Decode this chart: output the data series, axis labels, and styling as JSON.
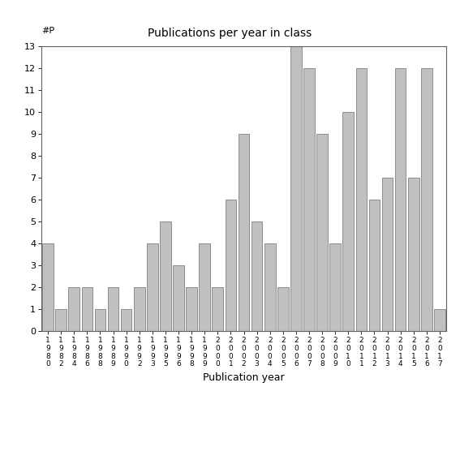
{
  "title": "Publications per year in class",
  "ylabel": "#P",
  "xlabel": "Publication year",
  "bar_color": "#c0c0c0",
  "bar_edgecolor": "#808080",
  "background_color": "#ffffff",
  "ylim": [
    0,
    13
  ],
  "yticks": [
    0,
    1,
    2,
    3,
    4,
    5,
    6,
    7,
    8,
    9,
    10,
    11,
    12,
    13
  ],
  "categories": [
    "1980",
    "1982",
    "1984",
    "1986",
    "1988",
    "1989",
    "1990",
    "1992",
    "1993",
    "1995",
    "1996",
    "1998",
    "1999",
    "2000",
    "2001",
    "2002",
    "2003",
    "2004",
    "2005",
    "2006",
    "2007",
    "2008",
    "2009",
    "2010",
    "2011",
    "2012",
    "2013",
    "2014",
    "2015",
    "2016",
    "2017"
  ],
  "values": [
    4,
    1,
    2,
    2,
    1,
    2,
    1,
    2,
    4,
    5,
    3,
    2,
    4,
    2,
    6,
    9,
    5,
    4,
    2,
    13,
    12,
    9,
    4,
    10,
    12,
    6,
    7,
    12,
    7,
    12,
    1
  ]
}
